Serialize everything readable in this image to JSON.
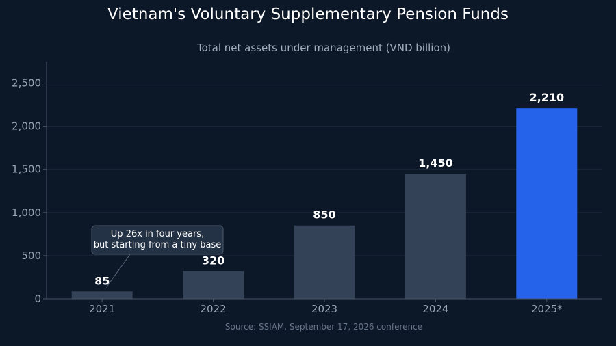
{
  "title": "Vietnam's Voluntary Supplementary Pension Funds",
  "subtitle": "Total net assets under management (VND billion)",
  "source": "Source: SSIAM, September 17, 2026 conference",
  "colors": {
    "background": "#0c1727",
    "bar": "#334256",
    "highlight": "#2563eb",
    "grid": "#1c2a3d",
    "axis": "#4a5668"
  },
  "chart_data": {
    "type": "bar",
    "categories": [
      "2021",
      "2022",
      "2023",
      "2024",
      "2025*"
    ],
    "values": [
      85,
      320,
      850,
      1450,
      2210
    ],
    "value_labels": [
      "85",
      "320",
      "850",
      "1,450",
      "2,210"
    ],
    "highlight_index": 4,
    "ylim": [
      0,
      2750
    ],
    "yticks": [
      0,
      500,
      1000,
      1500,
      2000,
      2500
    ],
    "ytick_labels": [
      "0",
      "500",
      "1,000",
      "1,500",
      "2,000",
      "2,500"
    ],
    "grid": true,
    "annotation": {
      "lines": [
        "Up 26x in four years,",
        "but starting from a tiny base"
      ],
      "target_index": 0
    }
  }
}
